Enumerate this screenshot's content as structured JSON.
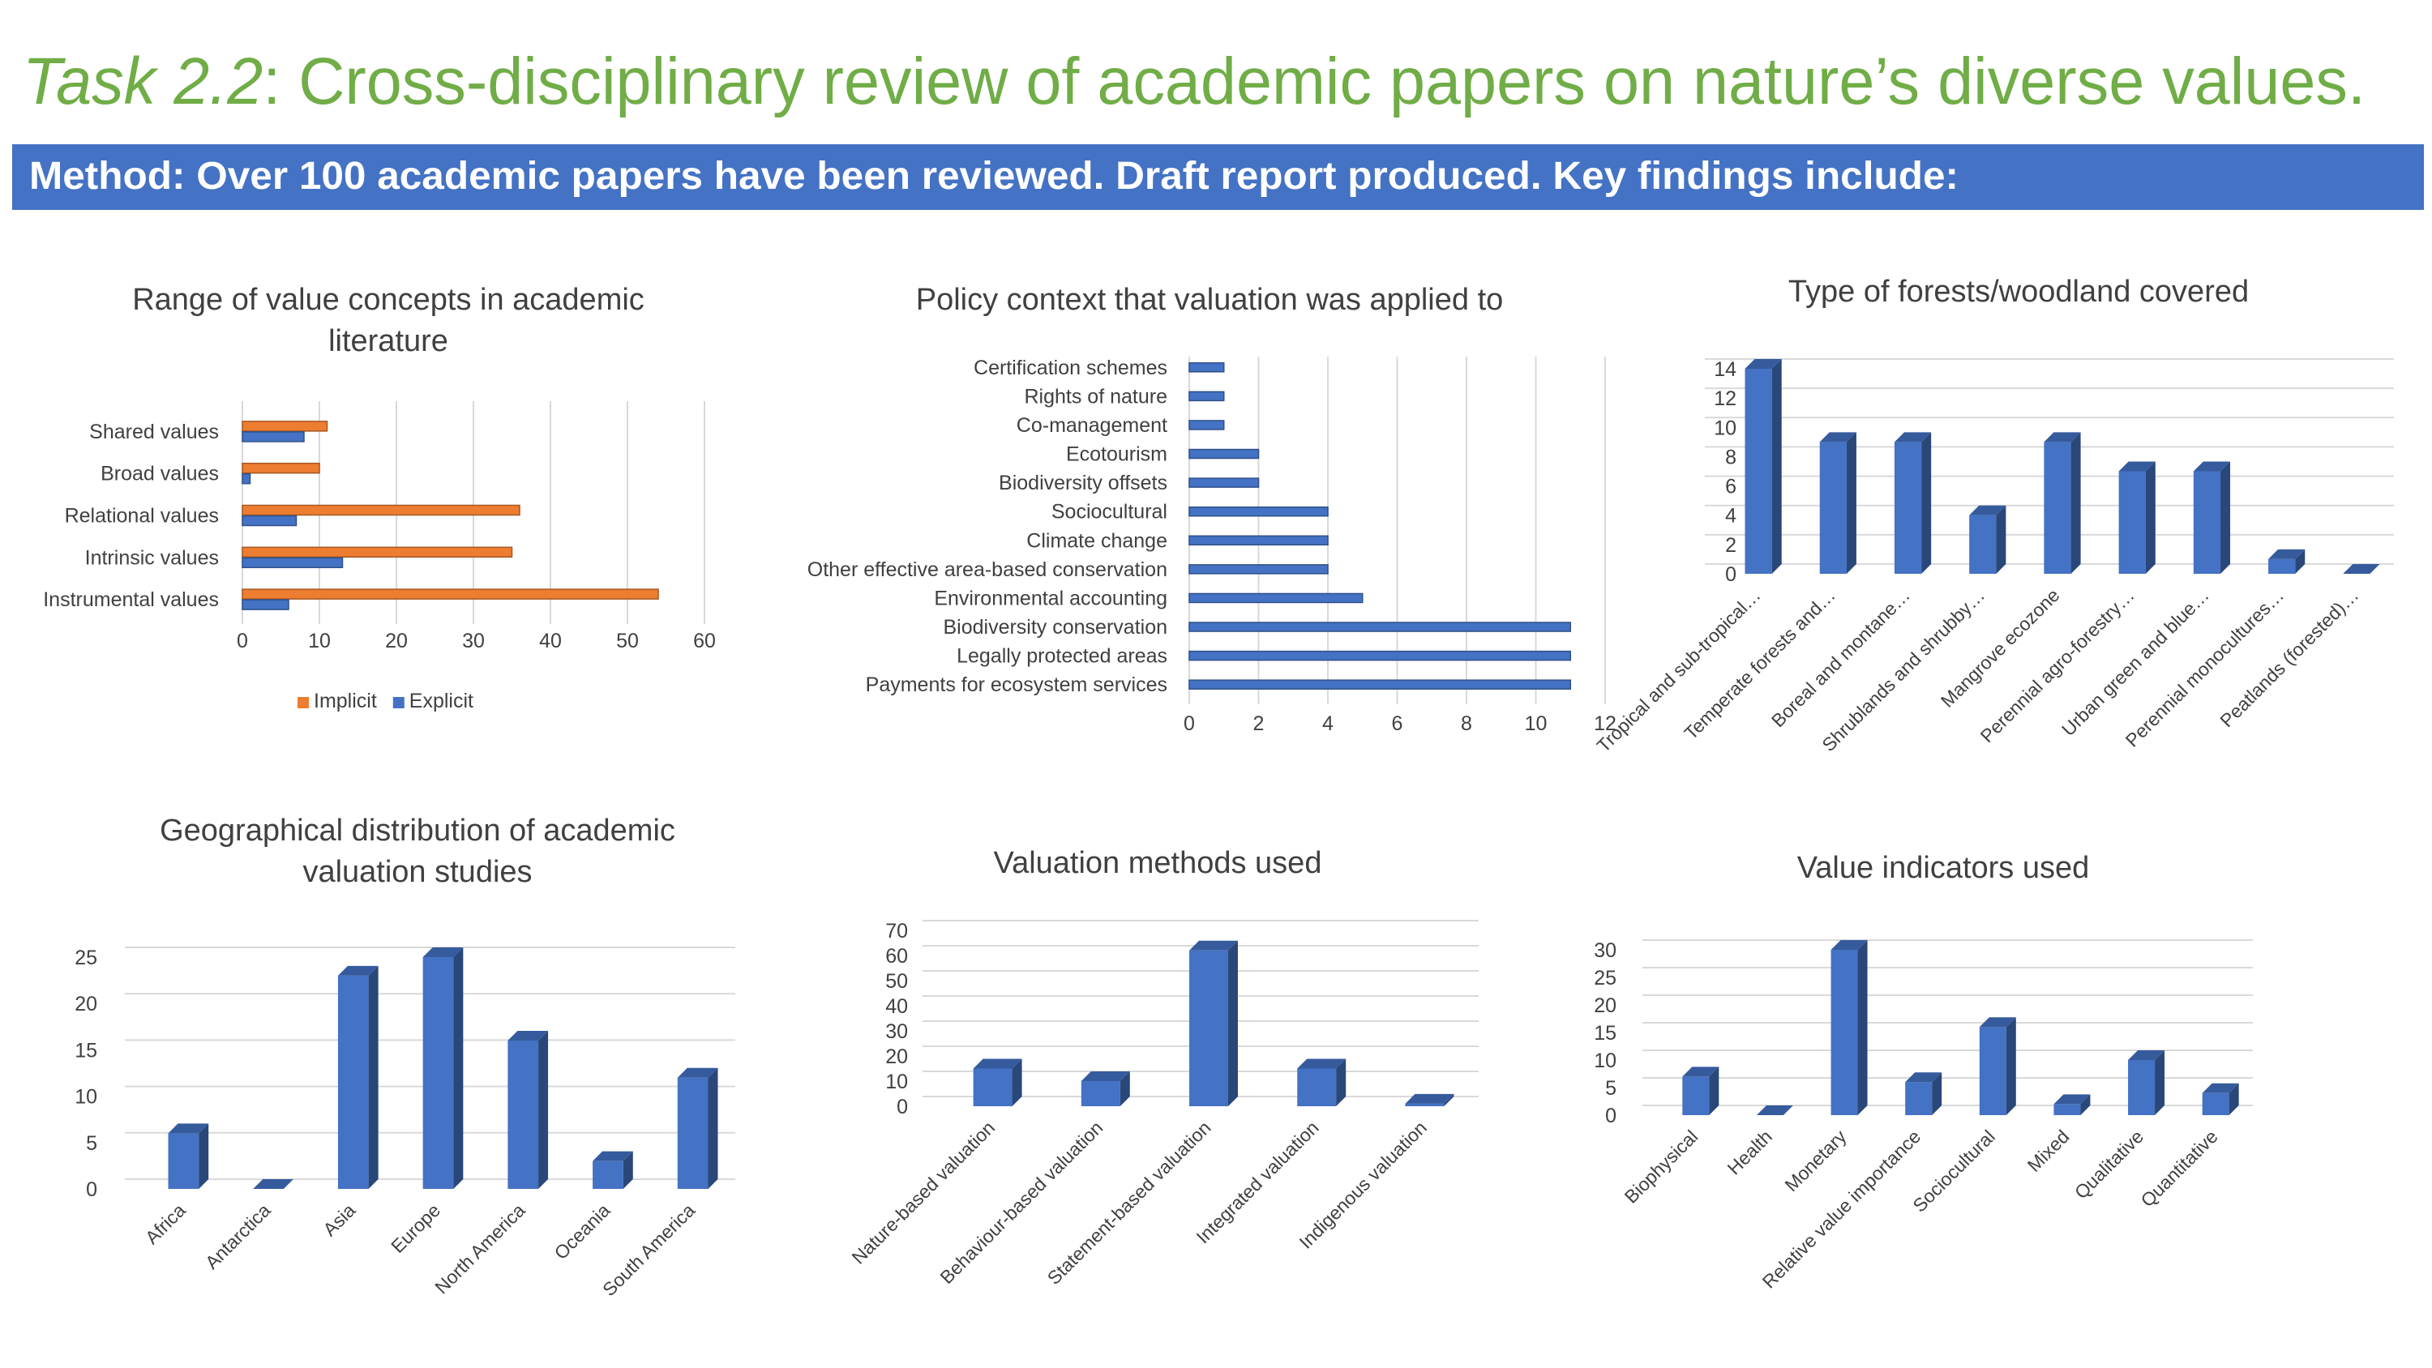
{
  "header": {
    "title_italic": "Task 2.2",
    "title_rest": ": Cross-disciplinary review of academic papers on nature’s diverse values.",
    "banner": "Method: Over 100 academic papers have been reviewed. Draft report produced. Key findings include:"
  },
  "chart_data": [
    {
      "type": "bar",
      "orientation": "horizontal",
      "title": "Range of value concepts in academic literature",
      "categories": [
        "Shared values",
        "Broad values",
        "Relational values",
        "Intrinsic values",
        "Instrumental values"
      ],
      "series": [
        {
          "name": "Implicit",
          "color": "#ed7d31",
          "values": [
            11,
            10,
            36,
            35,
            54
          ]
        },
        {
          "name": "Explicit",
          "color": "#4472c4",
          "values": [
            8,
            1,
            7,
            13,
            6
          ]
        }
      ],
      "xlim": [
        0,
        60
      ],
      "xticks": [
        0,
        10,
        20,
        30,
        40,
        50,
        60
      ],
      "grid": true,
      "legend": "bottom"
    },
    {
      "type": "bar",
      "orientation": "horizontal",
      "title": "Policy context that valuation was applied to",
      "categories": [
        "Certification schemes",
        "Rights of nature",
        "Co-management",
        "Ecotourism",
        "Biodiversity offsets",
        "Sociocultural",
        "Climate change",
        "Other effective area-based conservation",
        "Environmental accounting",
        "Biodiversity conservation",
        "Legally protected areas",
        "Payments for ecosystem services"
      ],
      "values": [
        1,
        1,
        1,
        2,
        2,
        4,
        4,
        4,
        5,
        11,
        11,
        11
      ],
      "color": "#4472c4",
      "xlim": [
        0,
        12
      ],
      "xticks": [
        0,
        2,
        4,
        6,
        8,
        10,
        12
      ],
      "grid": true
    },
    {
      "type": "bar",
      "orientation": "vertical",
      "depth3d": true,
      "title": "Type of forests/woodland covered",
      "categories": [
        "Tropical and sub-tropical…",
        "Temperate forests and…",
        "Boreal and montane…",
        "Shrublands and shrubby…",
        "Mangrove ecozone",
        "Perennial agro-forestry…",
        "Urban green and blue…",
        "Perennial monocultures…",
        "Peatlands (forested)…"
      ],
      "values": [
        14,
        9,
        9,
        4,
        9,
        7,
        7,
        1,
        0
      ],
      "color": "#4472c4",
      "ylim": [
        0,
        14
      ],
      "yticks": [
        0,
        2,
        4,
        6,
        8,
        10,
        12,
        14
      ],
      "grid": true
    },
    {
      "type": "bar",
      "orientation": "vertical",
      "depth3d": true,
      "title": "Geographical distribution of academic valuation studies",
      "categories": [
        "Africa",
        "Antarctica",
        "Asia",
        "Europe",
        "North America",
        "Oceania",
        "South America"
      ],
      "values": [
        6,
        0,
        23,
        25,
        16,
        3,
        12
      ],
      "color": "#4472c4",
      "ylim": [
        0,
        25
      ],
      "yticks": [
        0,
        5,
        10,
        15,
        20,
        25
      ],
      "grid": true
    },
    {
      "type": "bar",
      "orientation": "vertical",
      "depth3d": true,
      "title": "Valuation methods used",
      "categories": [
        "Nature-based valuation",
        "Behaviour-based valuation",
        "Statement-based valuation",
        "Integrated valuation",
        "Indigenous valuation"
      ],
      "values": [
        15,
        10,
        62,
        15,
        1
      ],
      "color": "#4472c4",
      "ylim": [
        0,
        70
      ],
      "yticks": [
        0,
        10,
        20,
        30,
        40,
        50,
        60,
        70
      ],
      "grid": true
    },
    {
      "type": "bar",
      "orientation": "vertical",
      "depth3d": true,
      "title": "Value indicators used",
      "categories": [
        "Biophysical",
        "Health",
        "Monetary",
        "Relative value importance",
        "Sociocultural",
        "Mixed",
        "Qualitative",
        "Quantitative"
      ],
      "values": [
        7,
        0,
        30,
        6,
        16,
        2,
        10,
        4
      ],
      "color": "#4472c4",
      "ylim": [
        0,
        30
      ],
      "yticks": [
        0,
        5,
        10,
        15,
        20,
        25,
        30
      ],
      "grid": true
    }
  ]
}
